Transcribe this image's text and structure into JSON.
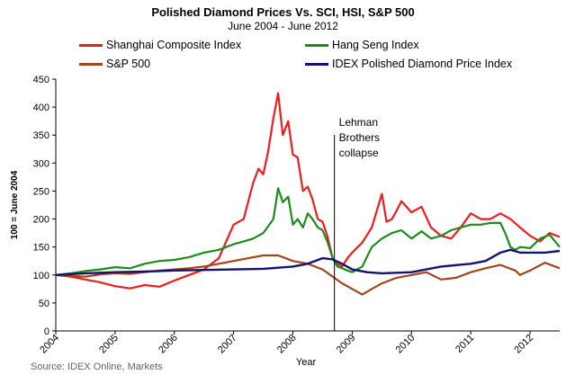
{
  "chart_data": {
    "type": "line",
    "title": "Polished Diamond Prices Vs. SCI, HSI, S&P 500",
    "subtitle": "June 2004 - June 2012",
    "xlabel": "Year",
    "ylabel": "100 = June 2004",
    "ylim": [
      0,
      450
    ],
    "y_ticks": [
      "0",
      "50",
      "100",
      "150",
      "200",
      "250",
      "300",
      "350",
      "400",
      "450"
    ],
    "x_ticks": [
      "2004",
      "2005",
      "2006",
      "2007",
      "2008",
      "2009",
      "2010",
      "2011",
      "2012"
    ],
    "x_tick_values": [
      2004.0,
      2005.0,
      2006.0,
      2007.0,
      2008.0,
      2009.0,
      2010.0,
      2011.0,
      2012.0
    ],
    "xlim": [
      2004.0,
      2012.5
    ],
    "grid": false,
    "legend_position": "top",
    "annotation": {
      "lines": [
        "Lehman",
        "Brothers",
        "collapse"
      ],
      "x": 2008.7
    },
    "source": "Source: IDEX Online, Markets",
    "series": [
      {
        "name": "Shanghai Composite Index",
        "color": "#ee1c1c",
        "x": [
          2004.0,
          2004.25,
          2004.5,
          2004.75,
          2005.0,
          2005.25,
          2005.5,
          2005.75,
          2006.0,
          2006.25,
          2006.5,
          2006.75,
          2007.0,
          2007.17,
          2007.33,
          2007.42,
          2007.5,
          2007.58,
          2007.67,
          2007.75,
          2007.83,
          2007.92,
          2008.0,
          2008.08,
          2008.17,
          2008.25,
          2008.33,
          2008.42,
          2008.5,
          2008.58,
          2008.67,
          2008.75,
          2008.83,
          2008.92,
          2009.0,
          2009.17,
          2009.33,
          2009.5,
          2009.58,
          2009.67,
          2009.75,
          2009.83,
          2010.0,
          2010.17,
          2010.33,
          2010.5,
          2010.67,
          2010.83,
          2011.0,
          2011.17,
          2011.33,
          2011.5,
          2011.67,
          2011.83,
          2012.0,
          2012.17,
          2012.33,
          2012.5
        ],
        "values": [
          100,
          97,
          92,
          87,
          80,
          76,
          82,
          79,
          90,
          100,
          110,
          130,
          190,
          200,
          265,
          290,
          280,
          320,
          380,
          425,
          350,
          375,
          315,
          310,
          250,
          258,
          235,
          200,
          195,
          170,
          130,
          120,
          115,
          130,
          140,
          158,
          185,
          245,
          195,
          200,
          215,
          232,
          212,
          222,
          185,
          170,
          165,
          185,
          210,
          200,
          200,
          210,
          200,
          185,
          170,
          160,
          175,
          168
        ]
      },
      {
        "name": "Hang Seng Index",
        "color": "#1c8c1c",
        "x": [
          2004.0,
          2004.25,
          2004.5,
          2004.75,
          2005.0,
          2005.25,
          2005.5,
          2005.75,
          2006.0,
          2006.25,
          2006.5,
          2006.75,
          2007.0,
          2007.17,
          2007.33,
          2007.5,
          2007.67,
          2007.75,
          2007.83,
          2007.92,
          2008.0,
          2008.08,
          2008.17,
          2008.25,
          2008.33,
          2008.42,
          2008.5,
          2008.58,
          2008.67,
          2008.75,
          2008.83,
          2008.92,
          2009.0,
          2009.17,
          2009.33,
          2009.5,
          2009.67,
          2009.83,
          2010.0,
          2010.17,
          2010.33,
          2010.5,
          2010.67,
          2010.83,
          2011.0,
          2011.17,
          2011.33,
          2011.5,
          2011.58,
          2011.67,
          2011.75,
          2011.83,
          2012.0,
          2012.17,
          2012.33,
          2012.5
        ],
        "values": [
          100,
          103,
          107,
          110,
          114,
          112,
          120,
          125,
          127,
          132,
          140,
          145,
          155,
          160,
          165,
          175,
          200,
          255,
          230,
          240,
          190,
          200,
          185,
          210,
          200,
          185,
          180,
          160,
          130,
          115,
          112,
          108,
          105,
          115,
          150,
          165,
          175,
          180,
          165,
          178,
          165,
          170,
          180,
          185,
          190,
          190,
          193,
          193,
          175,
          150,
          145,
          150,
          148,
          165,
          172,
          150
        ]
      },
      {
        "name": "S&P 500",
        "color": "#a5441a",
        "x": [
          2004.0,
          2004.25,
          2004.5,
          2004.75,
          2005.0,
          2005.25,
          2005.5,
          2005.75,
          2006.0,
          2006.25,
          2006.5,
          2006.75,
          2007.0,
          2007.25,
          2007.5,
          2007.75,
          2008.0,
          2008.25,
          2008.5,
          2008.67,
          2008.83,
          2009.0,
          2009.17,
          2009.33,
          2009.5,
          2009.75,
          2010.0,
          2010.25,
          2010.5,
          2010.75,
          2011.0,
          2011.25,
          2011.5,
          2011.75,
          2011.83,
          2012.0,
          2012.25,
          2012.5
        ],
        "values": [
          100,
          98,
          97,
          101,
          103,
          102,
          105,
          108,
          110,
          112,
          115,
          120,
          125,
          130,
          135,
          135,
          125,
          120,
          110,
          97,
          85,
          75,
          65,
          75,
          85,
          95,
          100,
          105,
          92,
          95,
          105,
          112,
          118,
          108,
          100,
          108,
          122,
          112
        ]
      },
      {
        "name": "IDEX Polished Diamond Price Index",
        "color": "#14146e",
        "x": [
          2004.0,
          2004.5,
          2005.0,
          2005.5,
          2006.0,
          2006.5,
          2007.0,
          2007.5,
          2008.0,
          2008.25,
          2008.5,
          2008.67,
          2008.83,
          2009.0,
          2009.25,
          2009.5,
          2010.0,
          2010.5,
          2011.0,
          2011.25,
          2011.5,
          2011.67,
          2011.83,
          2012.0,
          2012.25,
          2012.5
        ],
        "values": [
          100,
          103,
          105,
          106,
          108,
          109,
          110,
          111,
          115,
          120,
          130,
          128,
          120,
          110,
          105,
          103,
          105,
          115,
          120,
          125,
          140,
          145,
          140,
          140,
          140,
          143
        ]
      }
    ]
  }
}
